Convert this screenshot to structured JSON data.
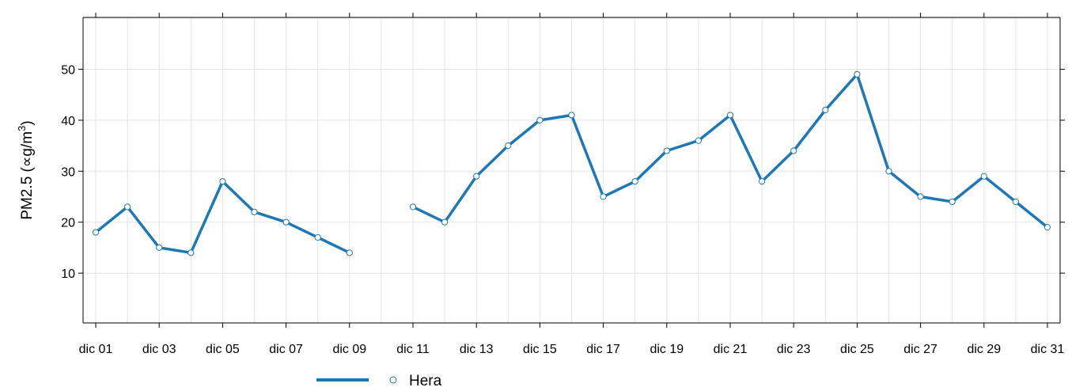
{
  "chart_data": {
    "type": "line",
    "title": "",
    "xlabel": "",
    "ylabel": "PM2.5 (∝g/m³)",
    "ylabel_parts": {
      "main": "PM2.5 (",
      "symbol": "∝",
      "unit": "g/m",
      "sup": "3",
      "close": ")"
    },
    "ylim": [
      0,
      60
    ],
    "yticks": [
      10,
      20,
      30,
      40,
      50
    ],
    "xlim": [
      1,
      31
    ],
    "x_tick_days": [
      1,
      3,
      5,
      7,
      9,
      11,
      13,
      15,
      17,
      19,
      21,
      23,
      25,
      27,
      29,
      31
    ],
    "x_tick_labels": [
      "dic 01",
      "dic 03",
      "dic 05",
      "dic 07",
      "dic 09",
      "dic 11",
      "dic 13",
      "dic 15",
      "dic 17",
      "dic 19",
      "dic 21",
      "dic 23",
      "dic 25",
      "dic 27",
      "dic 29",
      "dic 31"
    ],
    "grid": true,
    "legend_position": "bottom",
    "series": [
      {
        "name": "Hera",
        "color": "#1f77b4",
        "x": [
          1,
          2,
          3,
          4,
          5,
          6,
          7,
          8,
          9,
          10,
          11,
          12,
          13,
          14,
          15,
          16,
          17,
          18,
          19,
          20,
          21,
          22,
          23,
          24,
          25,
          26,
          27,
          28,
          29,
          30,
          31
        ],
        "values": [
          18,
          23,
          15,
          14,
          28,
          22,
          20,
          17,
          14,
          null,
          23,
          20,
          29,
          35,
          40,
          41,
          25,
          28,
          34,
          36,
          41,
          28,
          34,
          42,
          49,
          30,
          25,
          24,
          29,
          24,
          19
        ]
      }
    ]
  }
}
